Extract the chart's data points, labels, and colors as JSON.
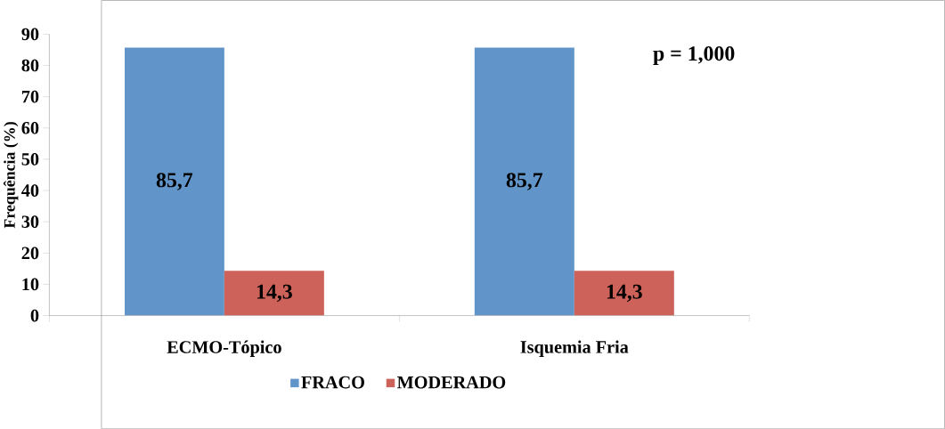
{
  "chart_data": {
    "type": "bar",
    "ylabel": "Frequência (%)",
    "categories": [
      "ECMO-Tópico",
      "Isquemia Fria"
    ],
    "series": [
      {
        "name": "FRACO",
        "color": "#6195c9",
        "values": [
          85.7,
          85.7
        ],
        "value_labels": [
          "85,7",
          "85,7"
        ]
      },
      {
        "name": "MODERADO",
        "color": "#cd625a",
        "values": [
          14.3,
          14.3
        ],
        "value_labels": [
          "14,3",
          "14,3"
        ]
      }
    ],
    "ylim": [
      0,
      90
    ],
    "yticks": [
      0,
      10,
      20,
      30,
      40,
      50,
      60,
      70,
      80,
      90
    ],
    "grid": false,
    "legend": "bottom",
    "annotations": [
      "p = 1,000"
    ]
  }
}
